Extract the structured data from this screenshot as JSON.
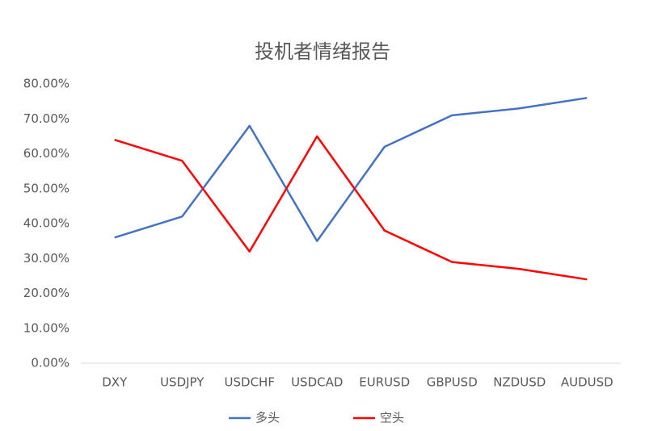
{
  "chart_data": {
    "type": "line",
    "title": "投机者情绪报告",
    "categories": [
      "DXY",
      "USDJPY",
      "USDCHF",
      "USDCAD",
      "EURUSD",
      "GBPUSD",
      "NZDUSD",
      "AUDUSD"
    ],
    "series": [
      {
        "name": "多头",
        "color": "#4472c4",
        "values": [
          36,
          42,
          68,
          35,
          62,
          71,
          73,
          76
        ]
      },
      {
        "name": "空头",
        "color": "#ff0000",
        "values": [
          64,
          58,
          32,
          65,
          38,
          29,
          27,
          24
        ]
      }
    ],
    "ylim": [
      0,
      80
    ],
    "yticks": [
      {
        "value": 0,
        "label": "0.00%"
      },
      {
        "value": 10,
        "label": "10.00%"
      },
      {
        "value": 20,
        "label": "20.00%"
      },
      {
        "value": 30,
        "label": "30.00%"
      },
      {
        "value": 40,
        "label": "40.00%"
      },
      {
        "value": 50,
        "label": "50.00%"
      },
      {
        "value": 60,
        "label": "60.00%"
      },
      {
        "value": 70,
        "label": "70.00%"
      },
      {
        "value": 80,
        "label": "80.00%"
      }
    ],
    "grid": false,
    "legend": "bottom"
  }
}
